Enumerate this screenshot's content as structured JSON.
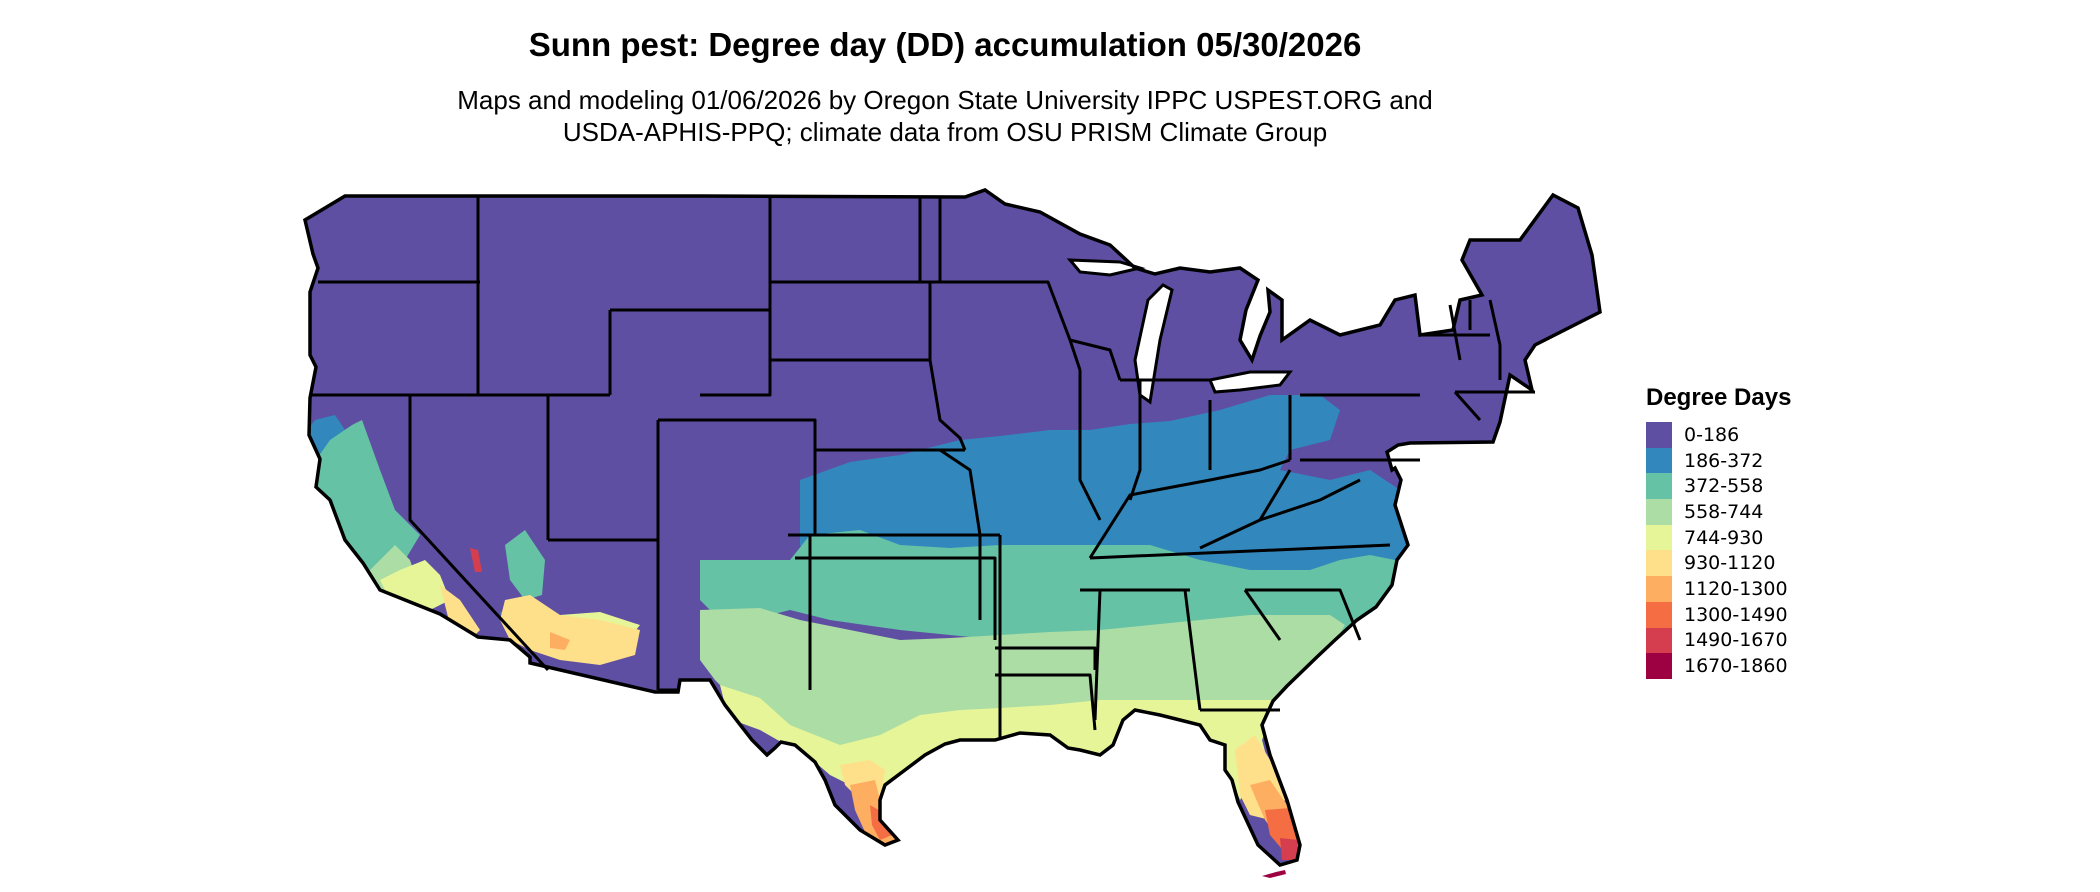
{
  "title": "Sunn pest: Degree day (DD) accumulation 05/30/2026",
  "subtitle_line1": "Maps and modeling 01/06/2026 by Oregon State University IPPC USPEST.ORG and",
  "subtitle_line2": "USDA-APHIS-PPQ; climate data from OSU PRISM Climate Group",
  "legend": {
    "title": "Degree Days",
    "items": [
      {
        "label": "0-186",
        "color": "#5E4FA2"
      },
      {
        "label": "186-372",
        "color": "#3288BD"
      },
      {
        "label": "372-558",
        "color": "#66C2A5"
      },
      {
        "label": "558-744",
        "color": "#ABDDA4"
      },
      {
        "label": "744-930",
        "color": "#E6F598"
      },
      {
        "label": "930-1120",
        "color": "#FEE08B"
      },
      {
        "label": "1120-1300",
        "color": "#FDAE61"
      },
      {
        "label": "1300-1490",
        "color": "#F46D43"
      },
      {
        "label": "1490-1670",
        "color": "#D53E4F"
      },
      {
        "label": "1670-1860",
        "color": "#9E0142"
      }
    ]
  }
}
